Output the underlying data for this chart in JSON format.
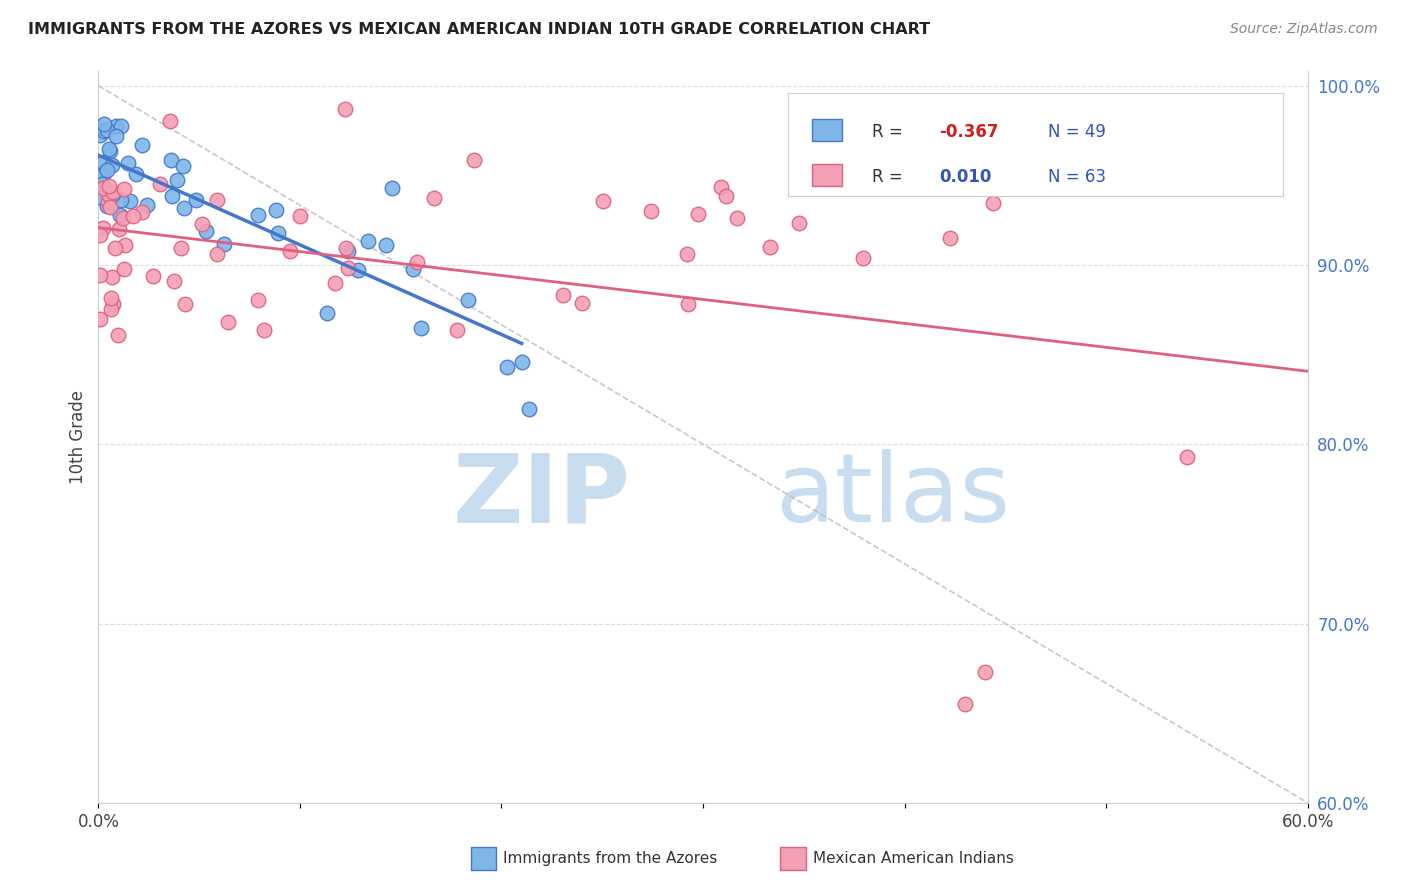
{
  "title": "IMMIGRANTS FROM THE AZORES VS MEXICAN AMERICAN INDIAN 10TH GRADE CORRELATION CHART",
  "source": "Source: ZipAtlas.com",
  "ylabel": "10th Grade",
  "legend_label1": "Immigrants from the Azores",
  "legend_label2": "Mexican American Indians",
  "R1": -0.367,
  "N1": 49,
  "R2": 0.01,
  "N2": 63,
  "color1": "#7EB6E8",
  "color2": "#F4A0B5",
  "edge_color1": "#4477CC",
  "edge_color2": "#E06080",
  "background": "#FFFFFF",
  "x_min": 0.0,
  "x_max": 0.6,
  "y_min": 0.6,
  "y_max": 1.008,
  "x_ticks": [
    0.0,
    0.1,
    0.2,
    0.3,
    0.4,
    0.5,
    0.6
  ],
  "x_tick_labels": [
    "0.0%",
    "",
    "",
    "",
    "",
    "",
    "60.0%"
  ],
  "y_ticks_right": [
    0.6,
    0.7,
    0.8,
    0.9,
    1.0
  ],
  "y_tick_labels_right": [
    "60.0%",
    "70.0%",
    "80.0%",
    "90.0%",
    "100.0%"
  ],
  "watermark_zip": "ZIP",
  "watermark_atlas": "atlas"
}
